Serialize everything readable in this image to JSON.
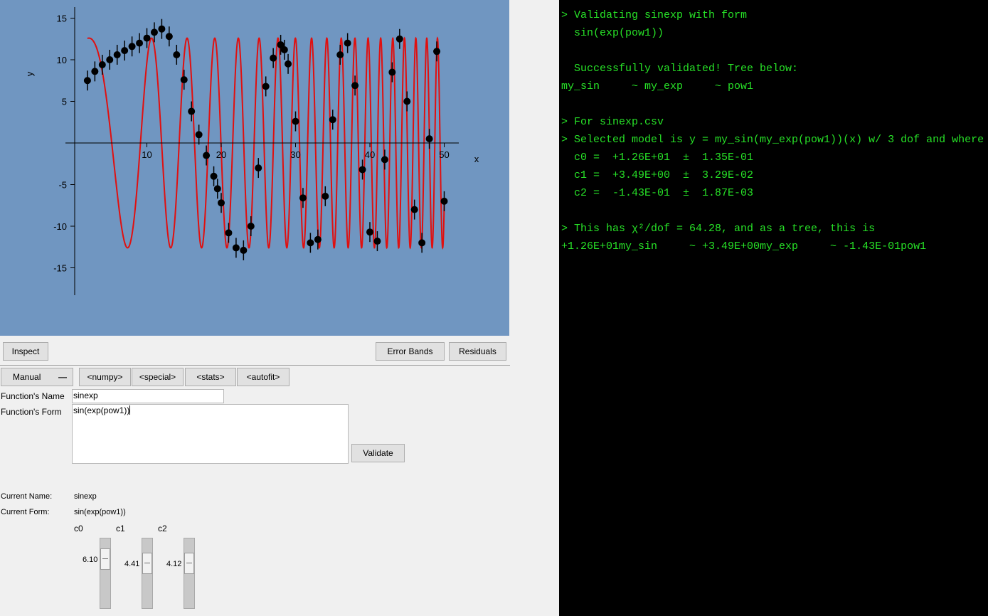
{
  "chart_data": {
    "type": "scatter",
    "title": "",
    "xlabel": "x",
    "ylabel": "y",
    "xlim": [
      1.5,
      52
    ],
    "ylim": [
      -18,
      16
    ],
    "x_ticks": [
      10,
      20,
      30,
      40,
      50
    ],
    "x_tick_labels": [
      "10",
      "20",
      "30",
      "40",
      "50"
    ],
    "y_ticks": [
      -15,
      -10,
      -5,
      5,
      10,
      15
    ],
    "y_tick_labels": [
      "-15",
      "-10",
      "-5",
      "5",
      "10",
      "15"
    ],
    "grid": false,
    "colors": {
      "background": "#7096c1",
      "points": "#000000",
      "fit": "#e01010"
    },
    "model": {
      "c0": 12.6,
      "c1": 3.49,
      "c2": -0.143,
      "note_form": "sin(exp(pow1))"
    },
    "series": [
      {
        "kind": "points",
        "x": [
          2.0,
          3.0,
          4.0,
          5.0,
          6.0,
          7.0,
          8.0,
          9.0,
          10.0,
          11.0,
          12.0,
          13.0,
          14.0,
          15.0,
          16.0,
          17.0,
          18.0,
          19.0,
          19.5,
          20.0,
          21.0,
          22.0,
          23.0,
          24.0,
          25.0,
          26.0,
          27.0,
          28.0,
          28.5,
          29.0,
          30.0,
          31.0,
          32.0,
          33.0,
          34.0,
          35.0,
          36.0,
          37.0,
          38.0,
          39.0,
          40.0,
          41.0,
          42.0,
          43.0,
          44.0,
          45.0,
          46.0,
          47.0,
          48.0,
          49.0,
          50.0
        ],
        "y": [
          7.5,
          8.6,
          9.4,
          10.0,
          10.6,
          11.1,
          11.6,
          12.0,
          12.6,
          13.3,
          13.7,
          12.8,
          10.6,
          7.6,
          3.8,
          1.0,
          -1.5,
          -4.0,
          -5.5,
          -7.2,
          -10.8,
          -12.6,
          -12.9,
          -10.0,
          -3.0,
          6.8,
          10.2,
          11.8,
          11.2,
          9.5,
          2.6,
          -6.6,
          -12.0,
          -11.6,
          -6.4,
          2.8,
          10.6,
          12.0,
          6.9,
          -3.2,
          -10.7,
          -11.8,
          -2.0,
          8.5,
          12.5,
          5.0,
          -8.0,
          -12.0,
          0.5,
          11.0,
          -7.0
        ]
      },
      {
        "kind": "fit_curve",
        "x_range": [
          2.0,
          50.0
        ]
      }
    ]
  },
  "plot_buttons": {
    "inspect": "Inspect",
    "error_bands": "Error Bands",
    "residuals": "Residuals"
  },
  "function_toolbar": {
    "mode": "Manual",
    "numpy": "<numpy>",
    "special": "<special>",
    "stats": "<stats>",
    "autofit": "<autofit>"
  },
  "function_inputs": {
    "name_label": "Function's Name",
    "name_value": "sinexp",
    "form_label": "Function's Form",
    "form_value": "sin(exp(pow1))",
    "validate": "Validate"
  },
  "current": {
    "name_label": "Current Name:",
    "name_value": "sinexp",
    "form_label": "Current Form:",
    "form_value": "sin(exp(pow1))"
  },
  "parameters": [
    {
      "name": "c0",
      "value": "6.10",
      "level": 0.25
    },
    {
      "name": "c1",
      "value": "4.41",
      "level": 0.3
    },
    {
      "name": "c2",
      "value": "4.12",
      "level": 0.3
    }
  ],
  "console": {
    "lines": [
      "> Validating sinexp with form",
      "  sin(exp(pow1))",
      "",
      "  Successfully validated! Tree below:",
      "my_sin     ~ my_exp     ~ pow1",
      "",
      "> For sinexp.csv",
      "> Selected model is y = my_sin(my_exp(pow1))(x) w/ 3 dof and where",
      "  c0 =  +1.26E+01  ±  1.35E-01",
      "  c1 =  +3.49E+00  ±  3.29E-02",
      "  c2 =  -1.43E-01  ±  1.87E-03",
      "",
      "> This has χ²/dof = 64.28, and as a tree, this is",
      "+1.26E+01my_sin     ~ +3.49E+00my_exp     ~ -1.43E-01pow1"
    ]
  }
}
